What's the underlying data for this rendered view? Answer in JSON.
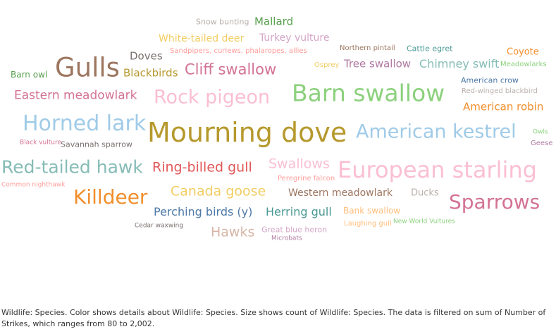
{
  "caption": "Wildlife: Species.  Color shows details about Wildlife: Species.  Size shows count of Wildlife: Species. The data is filtered on sum of Number of Strikes, which ranges from 80 to 2,002.",
  "chart_data": {
    "type": "word-cloud",
    "words": [
      {
        "text": "Snow bunting",
        "color": "#bab0ac"
      },
      {
        "text": "Mallard",
        "color": "#59a14f"
      },
      {
        "text": "White-tailed deer",
        "color": "#f1ce63"
      },
      {
        "text": "Turkey vulture",
        "color": "#d4a6c8"
      },
      {
        "text": "Doves",
        "color": "#79706e"
      },
      {
        "text": "Sandpipers, curlews, phalaropes, allies",
        "color": "#ff9d9a"
      },
      {
        "text": "Northern pintail",
        "color": "#9d7660"
      },
      {
        "text": "Cattle egret",
        "color": "#499894"
      },
      {
        "text": "Coyote",
        "color": "#f28e2b"
      },
      {
        "text": "Gulls",
        "color": "#9d7660"
      },
      {
        "text": "Barn owl",
        "color": "#59a14f"
      },
      {
        "text": "Blackbirds",
        "color": "#b6992d"
      },
      {
        "text": "Cliff swallow",
        "color": "#d37295"
      },
      {
        "text": "Osprey",
        "color": "#f1ce63"
      },
      {
        "text": "Tree swallow",
        "color": "#b07aa1"
      },
      {
        "text": "Chimney swift",
        "color": "#86bcb6"
      },
      {
        "text": "Meadowlarks",
        "color": "#8cd17d"
      },
      {
        "text": "American crow",
        "color": "#4e79a7"
      },
      {
        "text": "Eastern meadowlark",
        "color": "#d37295"
      },
      {
        "text": "Rock pigeon",
        "color": "#fabfd2"
      },
      {
        "text": "Barn swallow",
        "color": "#8cd17d"
      },
      {
        "text": "Red-winged blackbird",
        "color": "#bab0ac"
      },
      {
        "text": "American robin",
        "color": "#f28e2b"
      },
      {
        "text": "Horned lark",
        "color": "#a0cbe8"
      },
      {
        "text": "Mourning dove",
        "color": "#b6992d"
      },
      {
        "text": "American kestrel",
        "color": "#a0cbe8"
      },
      {
        "text": "Owls",
        "color": "#8cd17d"
      },
      {
        "text": "Black vulture",
        "color": "#d37295"
      },
      {
        "text": "Savannah sparrow",
        "color": "#79706e"
      },
      {
        "text": "Geese",
        "color": "#b07aa1"
      },
      {
        "text": "Red-tailed hawk",
        "color": "#86bcb6"
      },
      {
        "text": "Ring-billed gull",
        "color": "#e15759"
      },
      {
        "text": "Swallows",
        "color": "#fabfd2"
      },
      {
        "text": "European starling",
        "color": "#fabfd2"
      },
      {
        "text": "Peregrine falcon",
        "color": "#ff9d9a"
      },
      {
        "text": "Common nighthawk",
        "color": "#ff9d9a"
      },
      {
        "text": "Killdeer",
        "color": "#f28e2b"
      },
      {
        "text": "Canada goose",
        "color": "#f1ce63"
      },
      {
        "text": "Western meadowlark",
        "color": "#9d7660"
      },
      {
        "text": "Ducks",
        "color": "#bab0ac"
      },
      {
        "text": "Sparrows",
        "color": "#d37295"
      },
      {
        "text": "Perching birds (y)",
        "color": "#4e79a7"
      },
      {
        "text": "Herring gull",
        "color": "#499894"
      },
      {
        "text": "Bank swallow",
        "color": "#ffbe7d"
      },
      {
        "text": "Cedar waxwing",
        "color": "#79706e"
      },
      {
        "text": "Hawks",
        "color": "#d7b5a6"
      },
      {
        "text": "Great blue heron",
        "color": "#d4a6c8"
      },
      {
        "text": "Laughing gull",
        "color": "#ffbe7d"
      },
      {
        "text": "New World Vultures",
        "color": "#8cd17d"
      },
      {
        "text": "Microbats",
        "color": "#b07aa1"
      }
    ]
  }
}
